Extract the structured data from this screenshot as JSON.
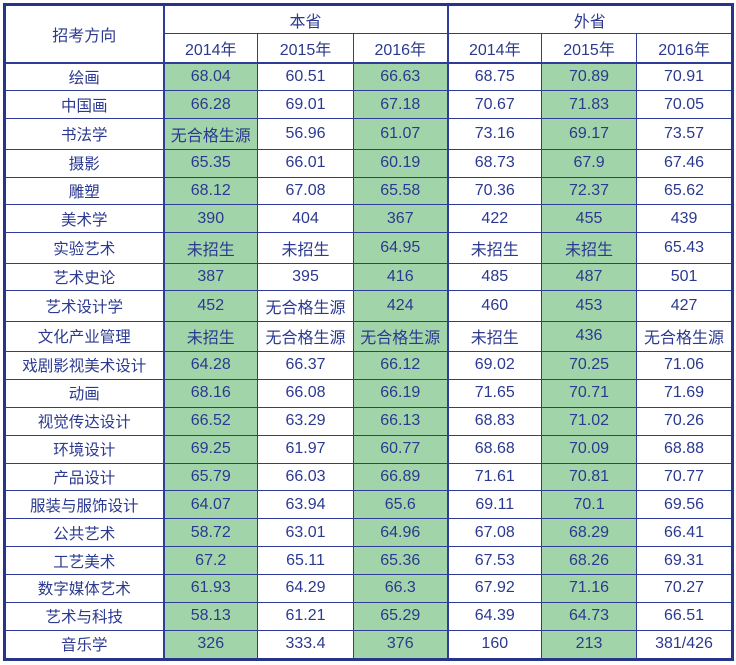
{
  "table": {
    "corner_header": "招考方向",
    "groups": [
      {
        "label": "本省",
        "years": [
          "2014年",
          "2015年",
          "2016年"
        ]
      },
      {
        "label": "外省",
        "years": [
          "2014年",
          "2015年",
          "2016年"
        ]
      }
    ],
    "rows": [
      {
        "label": "绘画",
        "values": [
          "68.04",
          "60.51",
          "66.63",
          "68.75",
          "70.89",
          "70.91"
        ]
      },
      {
        "label": "中国画",
        "values": [
          "66.28",
          "69.01",
          "67.18",
          "70.67",
          "71.83",
          "70.05"
        ]
      },
      {
        "label": "书法学",
        "values": [
          "无合格生源",
          "56.96",
          "61.07",
          "73.16",
          "69.17",
          "73.57"
        ]
      },
      {
        "label": "摄影",
        "values": [
          "65.35",
          "66.01",
          "60.19",
          "68.73",
          "67.9",
          "67.46"
        ]
      },
      {
        "label": "雕塑",
        "values": [
          "68.12",
          "67.08",
          "65.58",
          "70.36",
          "72.37",
          "65.62"
        ]
      },
      {
        "label": "美术学",
        "values": [
          "390",
          "404",
          "367",
          "422",
          "455",
          "439"
        ]
      },
      {
        "label": "实验艺术",
        "values": [
          "未招生",
          "未招生",
          "64.95",
          "未招生",
          "未招生",
          "65.43"
        ]
      },
      {
        "label": "艺术史论",
        "values": [
          "387",
          "395",
          "416",
          "485",
          "487",
          "501"
        ]
      },
      {
        "label": "艺术设计学",
        "values": [
          "452",
          "无合格生源",
          "424",
          "460",
          "453",
          "427"
        ]
      },
      {
        "label": "文化产业管理",
        "values": [
          "未招生",
          "无合格生源",
          "无合格生源",
          "未招生",
          "436",
          "无合格生源"
        ]
      },
      {
        "label": "戏剧影视美术设计",
        "values": [
          "64.28",
          "66.37",
          "66.12",
          "69.02",
          "70.25",
          "71.06"
        ]
      },
      {
        "label": "动画",
        "values": [
          "68.16",
          "66.08",
          "66.19",
          "71.65",
          "70.71",
          "71.69"
        ]
      },
      {
        "label": "视觉传达设计",
        "values": [
          "66.52",
          "63.29",
          "66.13",
          "68.83",
          "71.02",
          "70.26"
        ]
      },
      {
        "label": "环境设计",
        "values": [
          "69.25",
          "61.97",
          "60.77",
          "68.68",
          "70.09",
          "68.88"
        ]
      },
      {
        "label": "产品设计",
        "values": [
          "65.79",
          "66.03",
          "66.89",
          "71.61",
          "70.81",
          "70.77"
        ]
      },
      {
        "label": "服装与服饰设计",
        "values": [
          "64.07",
          "63.94",
          "65.6",
          "69.11",
          "70.1",
          "69.56"
        ]
      },
      {
        "label": "公共艺术",
        "values": [
          "58.72",
          "63.01",
          "64.96",
          "67.08",
          "68.29",
          "66.41"
        ]
      },
      {
        "label": "工艺美术",
        "values": [
          "67.2",
          "65.11",
          "65.36",
          "67.53",
          "68.26",
          "69.31"
        ]
      },
      {
        "label": "数字媒体艺术",
        "values": [
          "61.93",
          "64.29",
          "66.3",
          "67.92",
          "71.16",
          "70.27"
        ]
      },
      {
        "label": "艺术与科技",
        "values": [
          "58.13",
          "61.21",
          "65.29",
          "64.39",
          "64.73",
          "66.51"
        ]
      },
      {
        "label": "音乐学",
        "values": [
          "326",
          "333.4",
          "376",
          "160",
          "213",
          "381/426"
        ]
      }
    ],
    "shaded_columns": [
      0,
      2,
      4
    ],
    "colors": {
      "text": "#2b3990",
      "border": "#2f3d99",
      "border_outer": "#27348b",
      "shaded_green": "#a2d4aa",
      "cell_white": "#ffffff"
    }
  }
}
